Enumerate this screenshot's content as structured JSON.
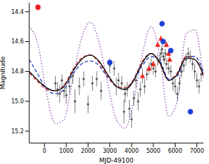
{
  "chart_data": {
    "type": "scatter",
    "x_label": "MJD-49100",
    "y_label": "Magnitude",
    "xlim": [
      -700,
      7300
    ],
    "xticks": [
      0,
      1000,
      2000,
      3000,
      4000,
      5000,
      6000,
      7000
    ],
    "ylim": [
      15.28,
      14.34
    ],
    "yticks": [
      14.4,
      14.6,
      14.8,
      {
        "value": 15,
        "label": "15.0"
      },
      15.2
    ],
    "series": [
      {
        "type": "line",
        "color": "#8e44ad",
        "line_style": "dotted",
        "x": [
          -700,
          -300,
          100,
          500,
          900,
          1300,
          1700,
          2100,
          2500,
          2900,
          3300,
          3700,
          4100,
          4500,
          4900,
          5300,
          5700,
          6100,
          6500,
          6900,
          7300
        ],
        "values": [
          14.5,
          14.62,
          14.95,
          15.15,
          15.12,
          14.85,
          14.58,
          14.47,
          14.6,
          14.88,
          15.12,
          15.18,
          15.0,
          14.68,
          14.5,
          14.7,
          15.1,
          15.0,
          14.55,
          14.52,
          14.85
        ]
      },
      {
        "type": "line",
        "color": "#1f3fbf",
        "line_style": "dashed",
        "x": [
          -700,
          -300,
          100,
          500,
          900,
          1300,
          1700,
          2100,
          2500,
          2900,
          3300,
          3700,
          4100,
          4500,
          4900,
          5300,
          5700,
          6100,
          6500,
          6900,
          7300
        ],
        "values": [
          14.72,
          14.82,
          14.92,
          14.95,
          14.92,
          14.82,
          14.75,
          14.73,
          14.76,
          14.84,
          14.9,
          14.92,
          14.86,
          14.76,
          14.7,
          14.73,
          14.85,
          14.83,
          14.7,
          14.7,
          14.8
        ]
      },
      {
        "type": "line",
        "color": "#d62728",
        "line_style": "dashed",
        "x": [
          -700,
          -300,
          100,
          500,
          900,
          1300,
          1700,
          2100,
          2500,
          2900,
          3300,
          3700,
          4100,
          4500,
          4900,
          5300,
          5700,
          6100,
          6500,
          6900,
          7300
        ],
        "values": [
          14.81,
          14.87,
          14.92,
          14.93,
          14.89,
          14.79,
          14.71,
          14.69,
          14.74,
          14.83,
          14.9,
          14.91,
          14.85,
          14.73,
          14.68,
          14.75,
          14.86,
          14.81,
          14.7,
          14.72,
          14.83
        ]
      },
      {
        "type": "line",
        "color": "#000000",
        "line_style": "solid",
        "x": [
          -700,
          -300,
          100,
          500,
          900,
          1300,
          1700,
          2100,
          2500,
          2900,
          3300,
          3700,
          4100,
          4500,
          4900,
          5300,
          5700,
          6100,
          6500,
          6900,
          7300
        ],
        "values": [
          14.8,
          14.86,
          14.91,
          14.93,
          14.9,
          14.8,
          14.72,
          14.69,
          14.73,
          14.82,
          14.9,
          14.92,
          14.86,
          14.74,
          14.68,
          14.74,
          14.86,
          14.82,
          14.71,
          14.72,
          14.82
        ]
      },
      {
        "type": "scatter",
        "color": "#555555",
        "marker": "circle",
        "x": [
          500,
          600,
          700,
          800,
          900,
          1000,
          1150,
          1300,
          1400,
          1600,
          1800,
          2000,
          2200,
          2400,
          2600,
          3000,
          3200,
          3300,
          3400,
          3550,
          3650,
          3700,
          3800,
          3900,
          4000,
          4100,
          4200,
          4300,
          4400,
          4500,
          4600,
          4700,
          4800,
          4900,
          5000,
          5100,
          5200,
          5300,
          5350,
          5400,
          5450,
          5500,
          5550,
          5600,
          5700,
          5800,
          5900,
          6000,
          6100,
          6200,
          6300,
          6400,
          6500,
          6600,
          6700,
          6800,
          6900,
          7000,
          7100,
          7200
        ],
        "values": [
          14.88,
          14.92,
          14.95,
          14.86,
          14.93,
          14.96,
          14.9,
          14.83,
          15.0,
          14.9,
          14.85,
          15.02,
          14.88,
          14.85,
          14.93,
          14.76,
          14.78,
          14.9,
          14.86,
          14.88,
          15.07,
          14.95,
          14.92,
          15.05,
          15.12,
          14.98,
          14.86,
          15.0,
          14.92,
          14.83,
          14.9,
          14.82,
          14.78,
          14.75,
          14.78,
          14.8,
          14.72,
          14.72,
          14.68,
          14.65,
          14.7,
          14.72,
          14.68,
          14.75,
          14.78,
          14.8,
          14.88,
          14.9,
          14.95,
          14.88,
          14.8,
          14.76,
          14.72,
          14.68,
          14.7,
          14.75,
          14.8,
          14.86,
          14.9,
          14.82
        ],
        "errors": [
          0.05,
          0.05,
          0.06,
          0.04,
          0.05,
          0.06,
          0.05,
          0.05,
          0.08,
          0.06,
          0.05,
          0.06,
          0.05,
          0.05,
          0.06,
          0.05,
          0.05,
          0.06,
          0.05,
          0.05,
          0.08,
          0.06,
          0.05,
          0.06,
          0.06,
          0.05,
          0.05,
          0.06,
          0.05,
          0.05,
          0.05,
          0.04,
          0.04,
          0.04,
          0.04,
          0.04,
          0.04,
          0.03,
          0.03,
          0.03,
          0.03,
          0.03,
          0.03,
          0.04,
          0.04,
          0.04,
          0.05,
          0.05,
          0.05,
          0.05,
          0.04,
          0.04,
          0.04,
          0.04,
          0.04,
          0.04,
          0.05,
          0.05,
          0.05,
          0.05
        ]
      },
      {
        "type": "scatter",
        "color": "#e8251e",
        "marker": "triangle",
        "x": [
          4500,
          4800,
          5000,
          5200,
          5350,
          5600,
          5700,
          5750
        ],
        "values": [
          14.83,
          14.78,
          14.75,
          14.62,
          14.58,
          14.62,
          14.68,
          14.72
        ],
        "errors": [
          0.02,
          0.02,
          0.02,
          0.02,
          0.02,
          0.02,
          0.02,
          0.02
        ]
      },
      {
        "type": "scatter",
        "color": "#e8251e",
        "marker": "circle",
        "x": [
          -300
        ],
        "values": [
          14.37
        ],
        "errors": [
          0.02
        ]
      },
      {
        "type": "scatter",
        "color": "#1c3fd6",
        "marker": "circle",
        "x": [
          3000,
          5400,
          5450,
          5800,
          6700
        ],
        "values": [
          14.74,
          14.48,
          14.6,
          14.66,
          15.07
        ],
        "errors": [
          0.02,
          0.02,
          0.02,
          0.02,
          0.02
        ]
      }
    ]
  }
}
